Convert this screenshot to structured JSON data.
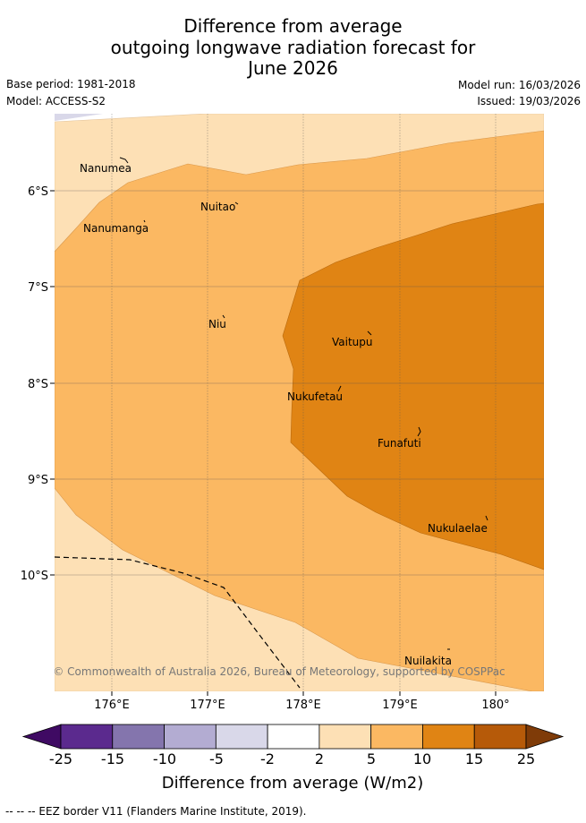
{
  "header": {
    "title_lines": [
      "Difference from average",
      "outgoing longwave radiation forecast for",
      "June 2026"
    ],
    "base_period": "Base period: 1981-2018",
    "model": "Model: ACCESS-S2",
    "model_run": "Model run: 16/03/2026",
    "issued": "Issued: 19/03/2026"
  },
  "map": {
    "lon_ticks": [
      "176°E",
      "177°E",
      "178°E",
      "179°E",
      "180°"
    ],
    "lat_ticks": [
      "6°S",
      "7°S",
      "8°S",
      "9°S",
      "10°S"
    ],
    "islands": [
      {
        "name": "Nanumea"
      },
      {
        "name": "Nuitao"
      },
      {
        "name": "Nanumanga"
      },
      {
        "name": "Niu"
      },
      {
        "name": "Vaitupu"
      },
      {
        "name": "Nukufetau"
      },
      {
        "name": "Funafuti"
      },
      {
        "name": "Nukulaelae"
      },
      {
        "name": "Nuilakita"
      }
    ],
    "copyright": "© Commonwealth of Australia 2026, Bureau of Meteorology, supported by COSPPac"
  },
  "legend": {
    "tick_labels": [
      "-25",
      "-15",
      "-10",
      "-5",
      "-2",
      "2",
      "5",
      "10",
      "15",
      "25"
    ],
    "colors": [
      "#3f0a63",
      "#5b2a8e",
      "#8475ad",
      "#b3acd2",
      "#d9d8e9",
      "#ffffff",
      "#fde0b5",
      "#fbb862",
      "#e08414",
      "#b65a09",
      "#7f3b08"
    ],
    "title": "Difference from average (W/m2)"
  },
  "footer": {
    "eez_note": "-- -- -- EEZ border V11 (Flanders Marine Institute, 2019)."
  }
}
